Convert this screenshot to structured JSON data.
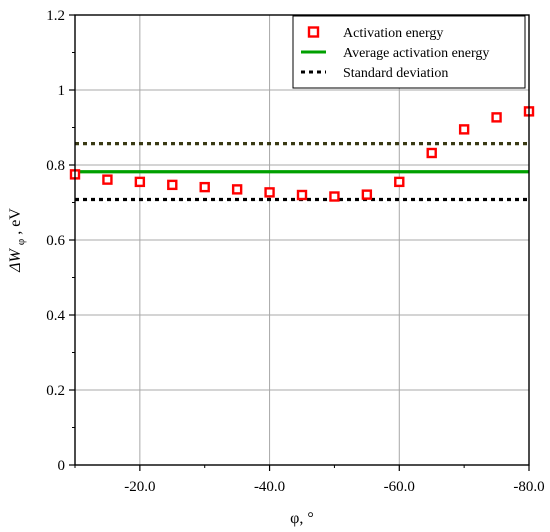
{
  "chart_data": {
    "type": "scatter",
    "xlabel": "φ, °",
    "ylabel": "ΔW",
    "ylabel_sub": "φ",
    "ylabel_suffix": ", eV",
    "xlim": [
      -10,
      -80
    ],
    "ylim": [
      0,
      1.2
    ],
    "x_ticks": [
      -20,
      -40,
      -60,
      -80
    ],
    "x_tick_labels": [
      "-20.0",
      "-40.0",
      "-60.0",
      "-80.0"
    ],
    "y_ticks": [
      0,
      0.2,
      0.4,
      0.6,
      0.8,
      1,
      1.2
    ],
    "y_tick_labels": [
      "0",
      "0.2",
      "0.4",
      "0.6",
      "0.8",
      "1",
      "1.2"
    ],
    "grid": true,
    "legend_position": "top-right",
    "series": [
      {
        "name": "Activation energy",
        "kind": "markers",
        "marker": "hollow-square",
        "color": "#ff0000",
        "x": [
          -10,
          -15,
          -20,
          -25,
          -30,
          -35,
          -40,
          -45,
          -50,
          -55,
          -60,
          -65,
          -70,
          -75,
          -80
        ],
        "y": [
          0.775,
          0.761,
          0.755,
          0.747,
          0.741,
          0.735,
          0.727,
          0.72,
          0.716,
          0.721,
          0.755,
          0.832,
          0.895,
          0.927,
          0.943
        ]
      },
      {
        "name": "Average activation energy",
        "kind": "hline",
        "color": "#00a000",
        "y": 0.782
      },
      {
        "name": "Standard deviation",
        "kind": "hline-pair",
        "style": "dotted",
        "color": "#000000",
        "y_values": [
          0.857,
          0.708
        ]
      }
    ]
  }
}
